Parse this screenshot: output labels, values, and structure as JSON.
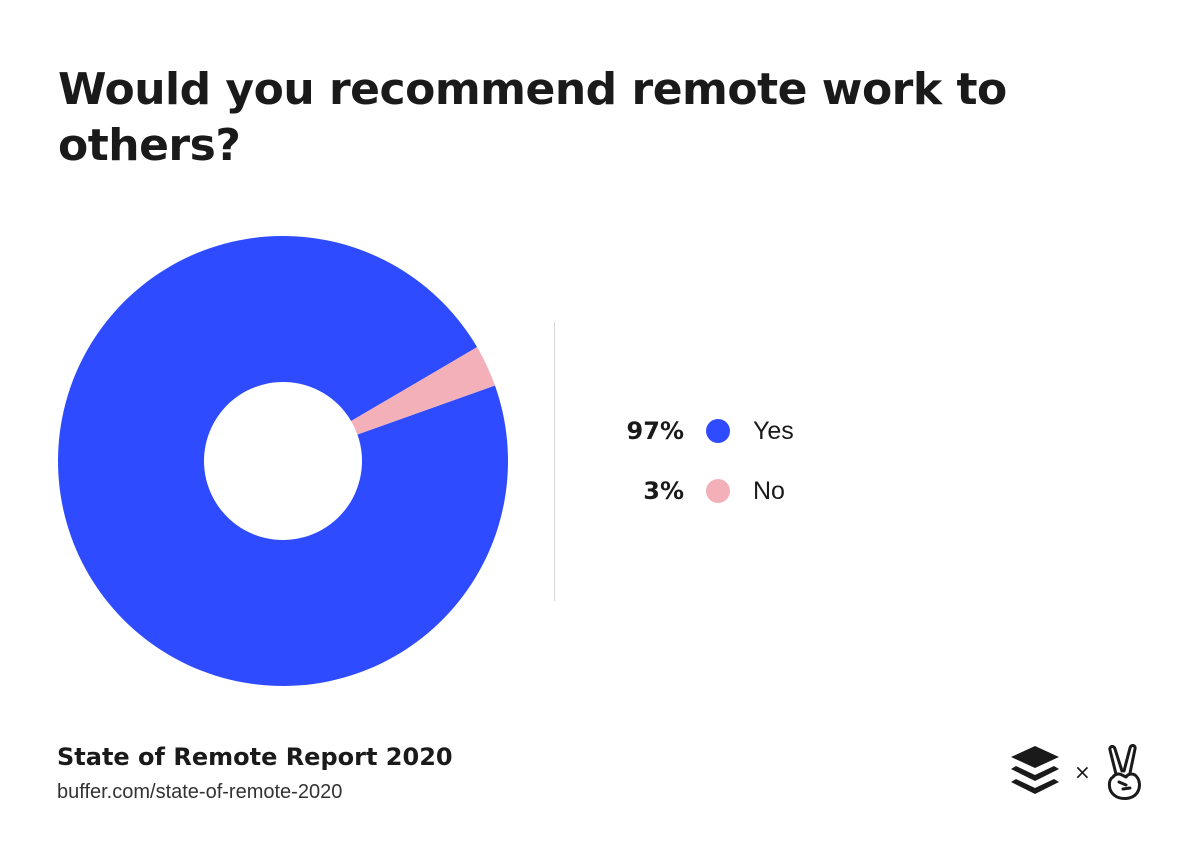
{
  "chart_data": {
    "type": "pie",
    "donut": true,
    "title": "Would you recommend remote work to others?",
    "slices": [
      {
        "label": "Yes",
        "value": 97,
        "value_label": "97%",
        "color": "#2e4bff"
      },
      {
        "label": "No",
        "value": 3,
        "value_label": "3%",
        "color": "#f4b0b8"
      }
    ],
    "legend_position": "right"
  },
  "footer": {
    "title": "State of Remote Report 2020",
    "url": "buffer.com/state-of-remote-2020"
  },
  "logos": {
    "separator": "×",
    "left_icon": "buffer-stack-icon",
    "right_icon": "peace-hand-icon"
  }
}
